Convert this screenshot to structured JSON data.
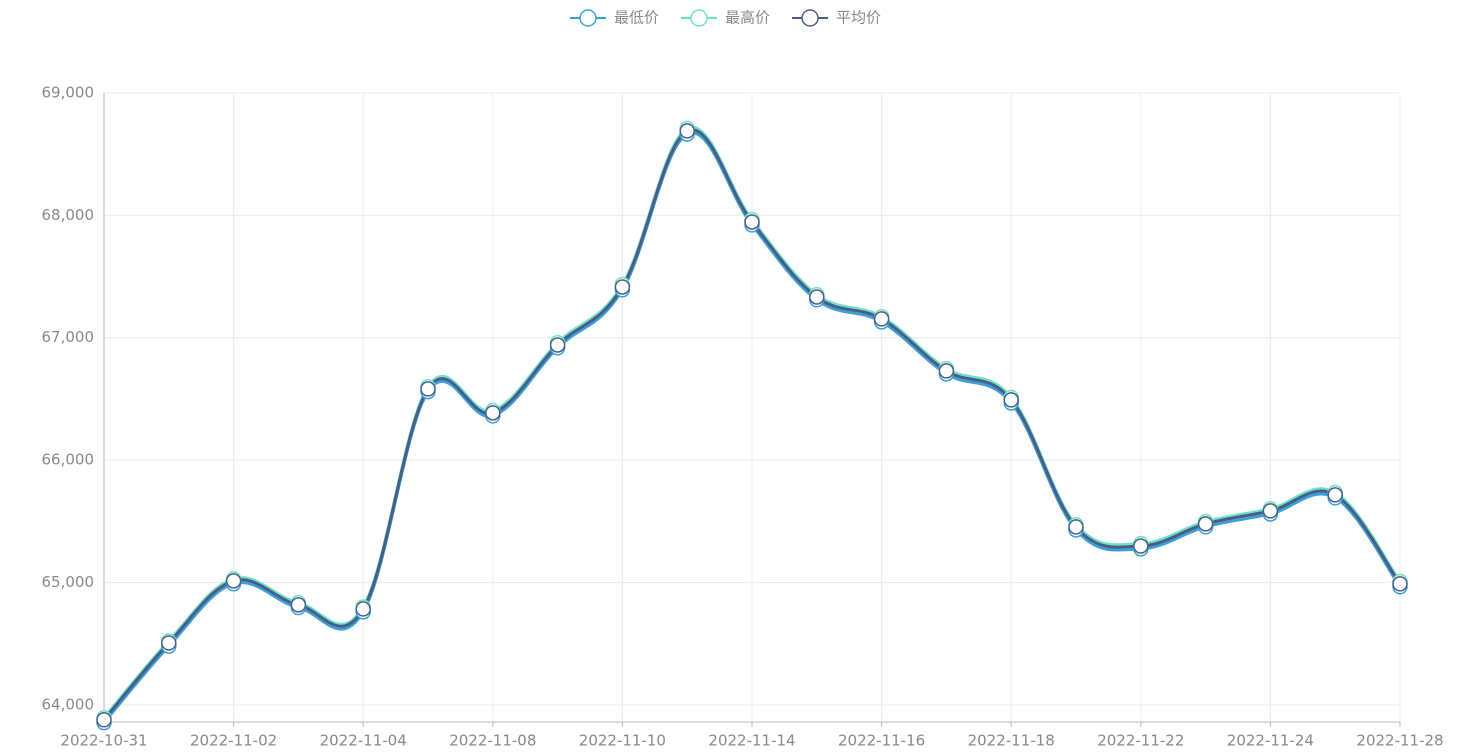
{
  "chart_data": {
    "type": "line",
    "categories": [
      "2022-10-31",
      null,
      "2022-11-02",
      null,
      "2022-11-04",
      null,
      "2022-11-08",
      null,
      "2022-11-10",
      null,
      "2022-11-14",
      null,
      "2022-11-16",
      null,
      "2022-11-18",
      null,
      "2022-11-22",
      null,
      "2022-11-24",
      null,
      "2022-11-28"
    ],
    "series": [
      {
        "name": "最低价",
        "color": "#3ba0d8",
        "values": [
          63855,
          64480,
          64990,
          64795,
          64760,
          66560,
          66362,
          66918,
          67392,
          68665,
          67922,
          67310,
          67130,
          66705,
          66468,
          65430,
          65275,
          65455,
          65560,
          65692,
          64965
        ]
      },
      {
        "name": "最高价",
        "color": "#6ee2c4",
        "values": [
          63895,
          64522,
          65030,
          64835,
          64800,
          66600,
          66405,
          66960,
          67435,
          68710,
          67965,
          67352,
          67172,
          66748,
          66512,
          65472,
          65318,
          65498,
          65602,
          65735,
          65008
        ]
      },
      {
        "name": "平均价",
        "color": "#4a5d88",
        "values": [
          63878,
          64506,
          65013,
          64817,
          64784,
          66582,
          66386,
          66941,
          67415,
          68690,
          67946,
          67333,
          67154,
          66729,
          66492,
          65454,
          65298,
          65479,
          65585,
          65716,
          64989
        ]
      }
    ],
    "ylim": [
      63860,
      69000
    ],
    "yticks": [
      {
        "value": 64000,
        "label": "64,000"
      },
      {
        "value": 65000,
        "label": "65,000"
      },
      {
        "value": 66000,
        "label": "66,000"
      },
      {
        "value": 67000,
        "label": "67,000"
      },
      {
        "value": 68000,
        "label": "68,000"
      },
      {
        "value": 69000,
        "label": "69,000"
      }
    ],
    "grid": true
  }
}
